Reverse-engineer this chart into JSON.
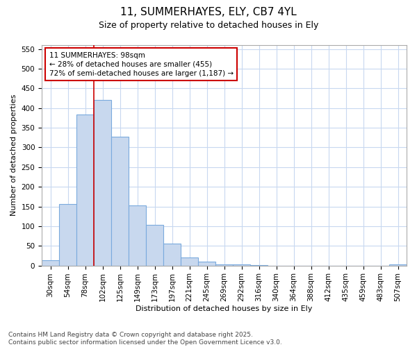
{
  "title": "11, SUMMERHAYES, ELY, CB7 4YL",
  "subtitle": "Size of property relative to detached houses in Ely",
  "xlabel": "Distribution of detached houses by size in Ely",
  "ylabel": "Number of detached properties",
  "categories": [
    "30sqm",
    "54sqm",
    "78sqm",
    "102sqm",
    "125sqm",
    "149sqm",
    "173sqm",
    "197sqm",
    "221sqm",
    "245sqm",
    "269sqm",
    "292sqm",
    "316sqm",
    "340sqm",
    "364sqm",
    "388sqm",
    "412sqm",
    "435sqm",
    "459sqm",
    "483sqm",
    "507sqm"
  ],
  "bar_heights": [
    13,
    157,
    383,
    421,
    327,
    152,
    103,
    55,
    20,
    10,
    2,
    2,
    1,
    0,
    0,
    0,
    0,
    0,
    0,
    0,
    2
  ],
  "bar_color": "#c8d8ee",
  "bar_edge_color": "#7aaadd",
  "background_color": "#ffffff",
  "grid_color": "#c8d8f0",
  "red_line_index": 3,
  "annotation_text": "11 SUMMERHAYES: 98sqm\n← 28% of detached houses are smaller (455)\n72% of semi-detached houses are larger (1,187) →",
  "annotation_box_edgecolor": "#cc0000",
  "annotation_box_facecolor": "#ffffff",
  "ylim": [
    0,
    560
  ],
  "yticks": [
    0,
    50,
    100,
    150,
    200,
    250,
    300,
    350,
    400,
    450,
    500,
    550
  ],
  "footer_line1": "Contains HM Land Registry data © Crown copyright and database right 2025.",
  "footer_line2": "Contains public sector information licensed under the Open Government Licence v3.0.",
  "title_fontsize": 11,
  "subtitle_fontsize": 9,
  "axis_label_fontsize": 8,
  "tick_fontsize": 7.5,
  "annotation_fontsize": 7.5,
  "footer_fontsize": 6.5
}
